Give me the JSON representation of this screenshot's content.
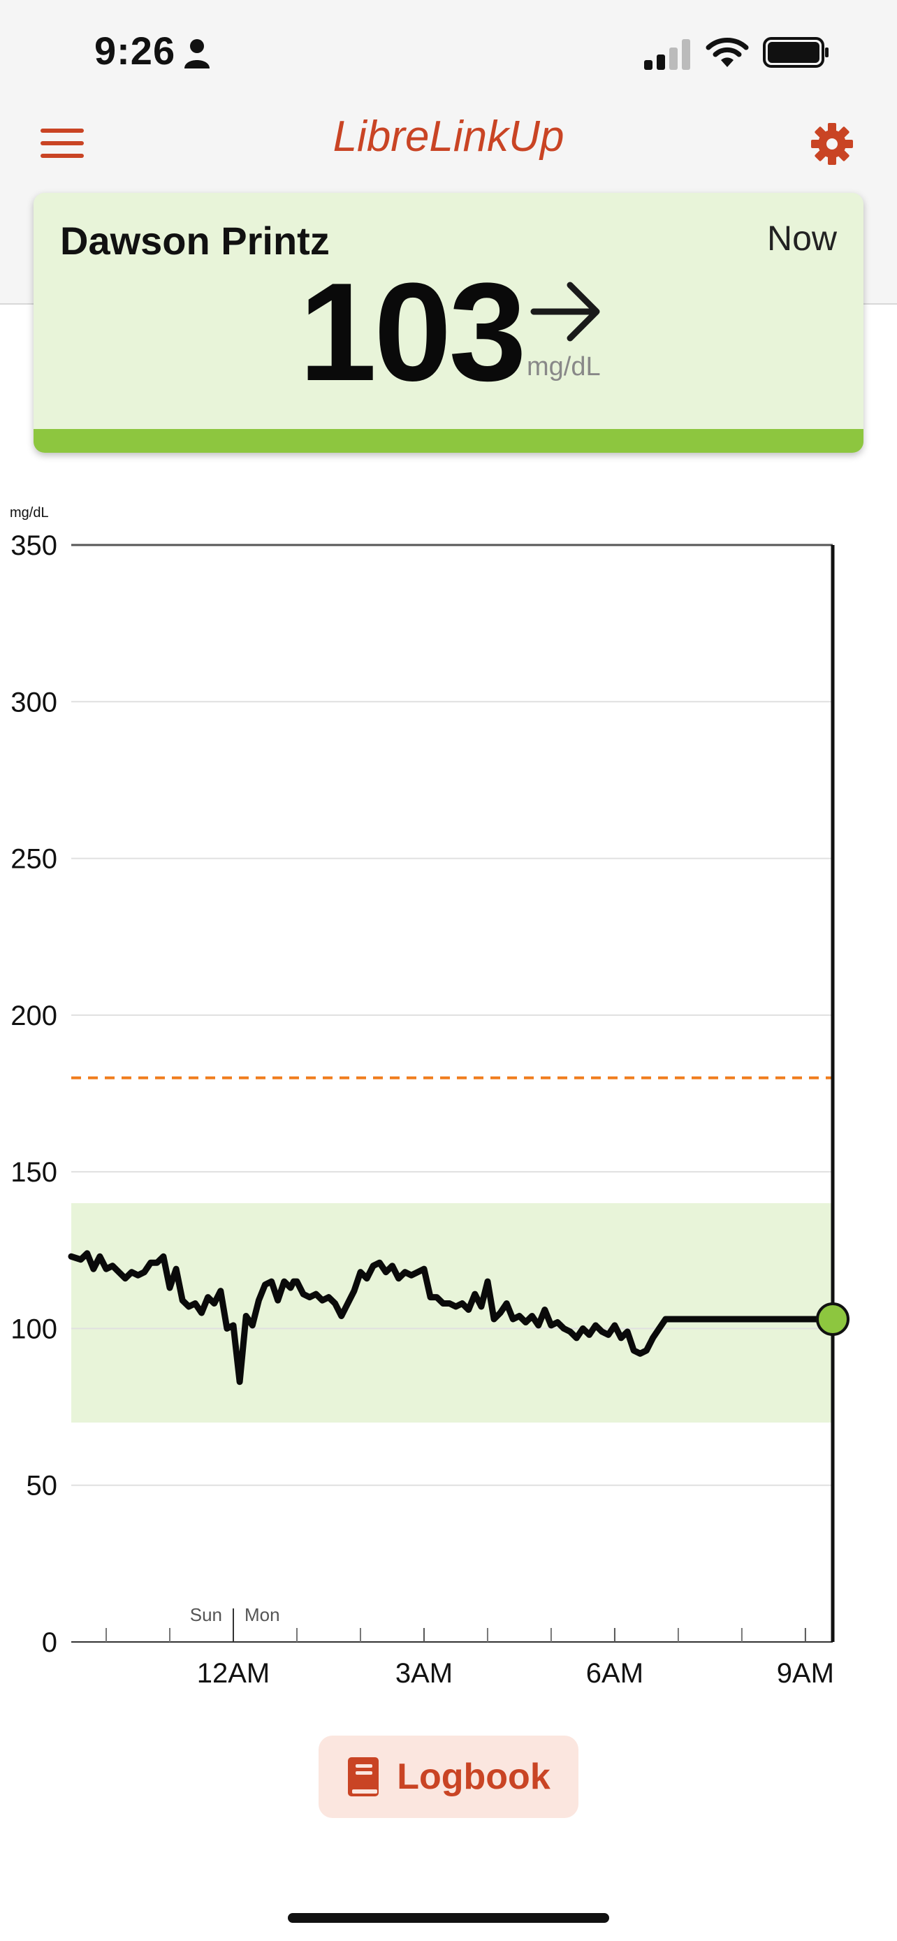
{
  "status_bar": {
    "time": "9:26",
    "icons": [
      "person-icon",
      "cellular-signal-icon",
      "wifi-icon",
      "battery-icon"
    ]
  },
  "header": {
    "title": "LibreLinkUp",
    "menu_icon": "hamburger-menu-icon",
    "settings_icon": "gear-icon"
  },
  "reading": {
    "patient_name": "Dawson Printz",
    "time_label": "Now",
    "value": "103",
    "unit": "mg/dL",
    "trend": "steady-right-arrow",
    "status_color": "#8dc63f"
  },
  "colors": {
    "accent": "#c94424",
    "target_band": "#e8f4d9",
    "high_threshold": "#f07c1c",
    "current_dot": "#8dc63f"
  },
  "chart_data": {
    "type": "line",
    "y_unit_label": "mg/dL",
    "ylim": [
      0,
      350
    ],
    "y_ticks": [
      0,
      50,
      100,
      150,
      200,
      250,
      300,
      350
    ],
    "y_tick_labels": [
      "0",
      "50",
      "100",
      "150",
      "200",
      "250",
      "300",
      "350"
    ],
    "x_range_hours": [
      -2.55,
      9.43
    ],
    "x_ticks_major": [
      {
        "hour": 0,
        "label": "12AM"
      },
      {
        "hour": 3,
        "label": "3AM"
      },
      {
        "hour": 6,
        "label": "6AM"
      },
      {
        "hour": 9,
        "label": "9AM"
      }
    ],
    "x_ticks_minor": [
      -2,
      -1,
      1,
      2,
      4,
      5,
      7,
      8
    ],
    "day_labels": {
      "before": "Sun",
      "after": "Mon"
    },
    "target_range": [
      70,
      140
    ],
    "high_threshold": 180,
    "current": {
      "hour": 9.43,
      "value": 103
    },
    "series": [
      {
        "x": [
          -2.55,
          -2.4,
          -2.3,
          -2.2,
          -2.1,
          -2.0,
          -1.9,
          -1.8,
          -1.7,
          -1.6,
          -1.5,
          -1.4,
          -1.3,
          -1.2,
          -1.1,
          -1.0,
          -0.9,
          -0.8,
          -0.7,
          -0.6,
          -0.5,
          -0.4,
          -0.3,
          -0.2,
          -0.1,
          0.0,
          0.1,
          0.2,
          0.3,
          0.4,
          0.5,
          0.6,
          0.7,
          0.8,
          0.9,
          0.95,
          1.0,
          1.1,
          1.2,
          1.3,
          1.4,
          1.5,
          1.6,
          1.7,
          1.8,
          1.9,
          2.0,
          2.1,
          2.2,
          2.3,
          2.4,
          2.5,
          2.6,
          2.7,
          2.8,
          2.9,
          3.0,
          3.1,
          3.2,
          3.3,
          3.4,
          3.5,
          3.6,
          3.7,
          3.8,
          3.9,
          4.0,
          4.1,
          4.2,
          4.3,
          4.4,
          4.5,
          4.6,
          4.7,
          4.8,
          4.9,
          5.0,
          5.1,
          5.2,
          5.3,
          5.4,
          5.5,
          5.6,
          5.7,
          5.8,
          5.9,
          6.0,
          6.1,
          6.2,
          6.3,
          6.4,
          6.5,
          6.6,
          6.7,
          6.8,
          6.9,
          7.0,
          7.1,
          7.2,
          7.3,
          7.4,
          7.5,
          7.6,
          7.7,
          7.8,
          7.9,
          8.0,
          8.1,
          8.2,
          8.3,
          8.4,
          8.5,
          8.6,
          8.7,
          8.8,
          8.9,
          9.0,
          9.1,
          9.2,
          9.3,
          9.43
        ],
        "y": [
          123,
          122,
          124,
          119,
          123,
          119,
          120,
          118,
          116,
          118,
          117,
          118,
          121,
          121,
          123,
          113,
          119,
          109,
          107,
          108,
          105,
          110,
          108,
          112,
          100,
          101,
          83,
          104,
          101,
          109,
          114,
          115,
          109,
          115,
          113,
          115,
          115,
          111,
          110,
          111,
          109,
          110,
          108,
          104,
          108,
          112,
          118,
          116,
          120,
          121,
          118,
          120,
          116,
          118,
          117,
          118,
          119,
          110,
          110,
          108,
          108,
          107,
          108,
          106,
          111,
          107,
          115,
          103,
          105,
          108,
          103,
          104,
          102,
          104,
          101,
          106,
          101,
          102,
          100,
          99,
          97,
          100,
          98,
          101,
          99,
          98,
          101,
          97,
          99,
          93,
          92,
          93,
          97,
          100,
          103,
          103,
          103,
          103,
          103,
          103,
          103,
          103,
          103,
          103,
          103,
          103,
          103,
          103,
          103,
          103,
          103,
          103,
          103,
          103,
          103,
          103,
          103,
          103,
          103,
          103,
          103
        ]
      }
    ]
  },
  "logbook": {
    "label": "Logbook",
    "icon": "book-icon"
  }
}
